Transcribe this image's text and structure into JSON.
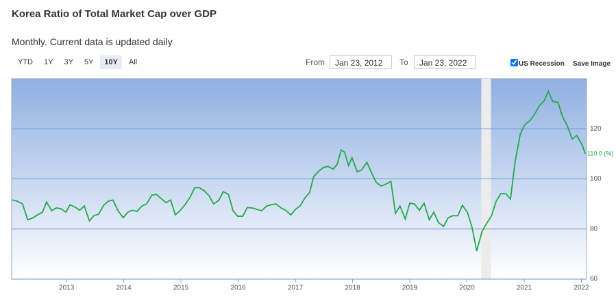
{
  "controls": {
    "ranges": [
      "YTD",
      "1Y",
      "3Y",
      "5Y",
      "10Y",
      "All"
    ],
    "selected_range": "10Y",
    "from_label": "From",
    "from": "Jan 23, 2012",
    "to_label": "To",
    "to": "Jan 23, 2022",
    "recession_label": "US Recession",
    "recession_checked": true,
    "save_label": "Save Image"
  },
  "chart_data": {
    "type": "line",
    "title": "Korea Ratio of Total Market Cap over GDP",
    "subtitle": "Monthly. Current data is updated daily",
    "color": "#22a84a",
    "x": [
      2012.05,
      2012.14,
      2012.23,
      2012.32,
      2012.4,
      2012.49,
      2012.58,
      2012.65,
      2012.74,
      2012.82,
      2012.9,
      2012.99,
      2013.06,
      2013.16,
      2013.23,
      2013.31,
      2013.4,
      2013.48,
      2013.56,
      2013.65,
      2013.73,
      2013.81,
      2013.9,
      2013.99,
      2014.07,
      2014.15,
      2014.23,
      2014.32,
      2014.4,
      2014.49,
      2014.57,
      2014.65,
      2014.74,
      2014.82,
      2014.9,
      2014.99,
      2015.07,
      2015.16,
      2015.24,
      2015.32,
      2015.41,
      2015.49,
      2015.57,
      2015.66,
      2015.74,
      2015.83,
      2015.91,
      2015.99,
      2016.08,
      2016.16,
      2016.25,
      2016.33,
      2016.41,
      2016.5,
      2016.58,
      2016.66,
      2016.75,
      2016.83,
      2016.92,
      2017.0,
      2017.08,
      2017.17,
      2017.25,
      2017.32,
      2017.41,
      2017.49,
      2017.57,
      2017.66,
      2017.73,
      2017.8,
      2017.86,
      2017.93,
      2017.99,
      2018.08,
      2018.16,
      2018.25,
      2018.33,
      2018.41,
      2018.5,
      2018.58,
      2018.67,
      2018.75,
      2018.83,
      2018.92,
      2019.0,
      2019.08,
      2019.17,
      2019.25,
      2019.34,
      2019.42,
      2019.5,
      2019.59,
      2019.67,
      2019.75,
      2019.84,
      2019.92,
      2020.01,
      2020.09,
      2020.17,
      2020.26,
      2020.34,
      2020.43,
      2020.51,
      2020.59,
      2020.68,
      2020.76,
      2020.84,
      2020.93,
      2021.01,
      2021.1,
      2021.18,
      2021.26,
      2021.35,
      2021.42,
      2021.5,
      2021.59,
      2021.67,
      2021.75,
      2021.84,
      2021.92,
      2022.01,
      2022.07
    ],
    "values": [
      91.6,
      91.1,
      90.0,
      83.7,
      84.3,
      85.6,
      86.7,
      90.8,
      87.3,
      88.4,
      88.1,
      86.7,
      89.7,
      88.6,
      87.5,
      89.2,
      83.2,
      85.4,
      85.9,
      89.5,
      91.1,
      91.6,
      87.3,
      84.5,
      86.7,
      87.5,
      87.0,
      89.2,
      90.0,
      93.5,
      93.8,
      92.2,
      90.5,
      91.6,
      85.6,
      87.5,
      89.7,
      92.7,
      96.5,
      96.5,
      95.2,
      93.3,
      90.0,
      91.4,
      94.9,
      93.8,
      87.3,
      85.1,
      85.1,
      88.6,
      88.4,
      87.8,
      87.3,
      89.2,
      89.7,
      90.0,
      88.4,
      87.5,
      85.6,
      87.8,
      89.2,
      92.5,
      94.6,
      100.9,
      103.1,
      104.5,
      105.0,
      103.9,
      105.8,
      111.5,
      110.7,
      105.3,
      108.5,
      102.8,
      103.6,
      106.6,
      102.5,
      98.7,
      97.1,
      97.9,
      99.0,
      86.2,
      89.2,
      84.0,
      90.3,
      90.0,
      87.5,
      90.3,
      83.7,
      86.7,
      82.6,
      81.0,
      84.5,
      85.3,
      85.3,
      89.5,
      86.5,
      80.5,
      71.2,
      78.8,
      82.1,
      85.3,
      91.1,
      94.1,
      94.1,
      91.9,
      106.6,
      117.8,
      121.6,
      123.3,
      125.7,
      129.0,
      131.2,
      135.0,
      130.9,
      130.6,
      124.9,
      121.4,
      115.9,
      117.3,
      113.7,
      110.0
    ],
    "last_value_label": "110.0 (%)",
    "recession_band": [
      2020.25,
      2020.42
    ],
    "xlim": [
      2012.04,
      2022.09
    ],
    "xticks": [
      2013,
      2014,
      2015,
      2016,
      2017,
      2018,
      2019,
      2020,
      2021,
      2022
    ],
    "ylim": [
      60,
      140
    ],
    "yticks": [
      60,
      80,
      100,
      120
    ],
    "grid": true
  }
}
